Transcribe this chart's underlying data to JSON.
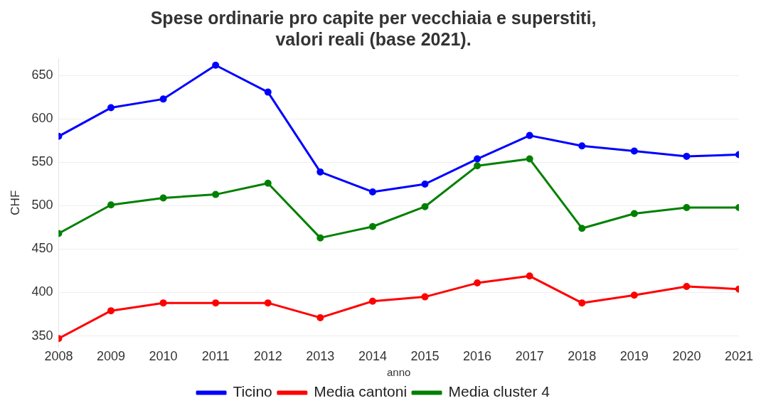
{
  "chart_data": {
    "type": "line",
    "title": "Spese ordinarie pro capite per vecchiaia e superstiti,\nvalori reali (base 2021).",
    "xlabel": "anno",
    "ylabel": "CHF",
    "x": [
      2008,
      2009,
      2010,
      2011,
      2012,
      2013,
      2014,
      2015,
      2016,
      2017,
      2018,
      2019,
      2020,
      2021
    ],
    "series": [
      {
        "name": "Ticino",
        "color": "#0000ff",
        "values": [
          580,
          613,
          623,
          662,
          631,
          539,
          516,
          525,
          554,
          581,
          569,
          563,
          557,
          559
        ]
      },
      {
        "name": "Media cantoni",
        "color": "#ff0000",
        "values": [
          347,
          379,
          388,
          388,
          388,
          371,
          390,
          395,
          411,
          419,
          388,
          397,
          407,
          404
        ]
      },
      {
        "name": "Media cluster 4",
        "color": "#008000",
        "values": [
          468,
          501,
          509,
          513,
          526,
          463,
          476,
          499,
          546,
          554,
          474,
          491,
          498,
          498
        ]
      }
    ],
    "xlim": [
      2008,
      2021
    ],
    "xticks": [
      2008,
      2009,
      2010,
      2011,
      2012,
      2013,
      2014,
      2015,
      2016,
      2017,
      2018,
      2019,
      2020,
      2021
    ],
    "ylim": [
      337,
      670
    ],
    "yticks": [
      350,
      400,
      450,
      500,
      550,
      600,
      650
    ],
    "grid": "y",
    "legend": "bottom",
    "marker": "circle",
    "line_style": "solid"
  }
}
